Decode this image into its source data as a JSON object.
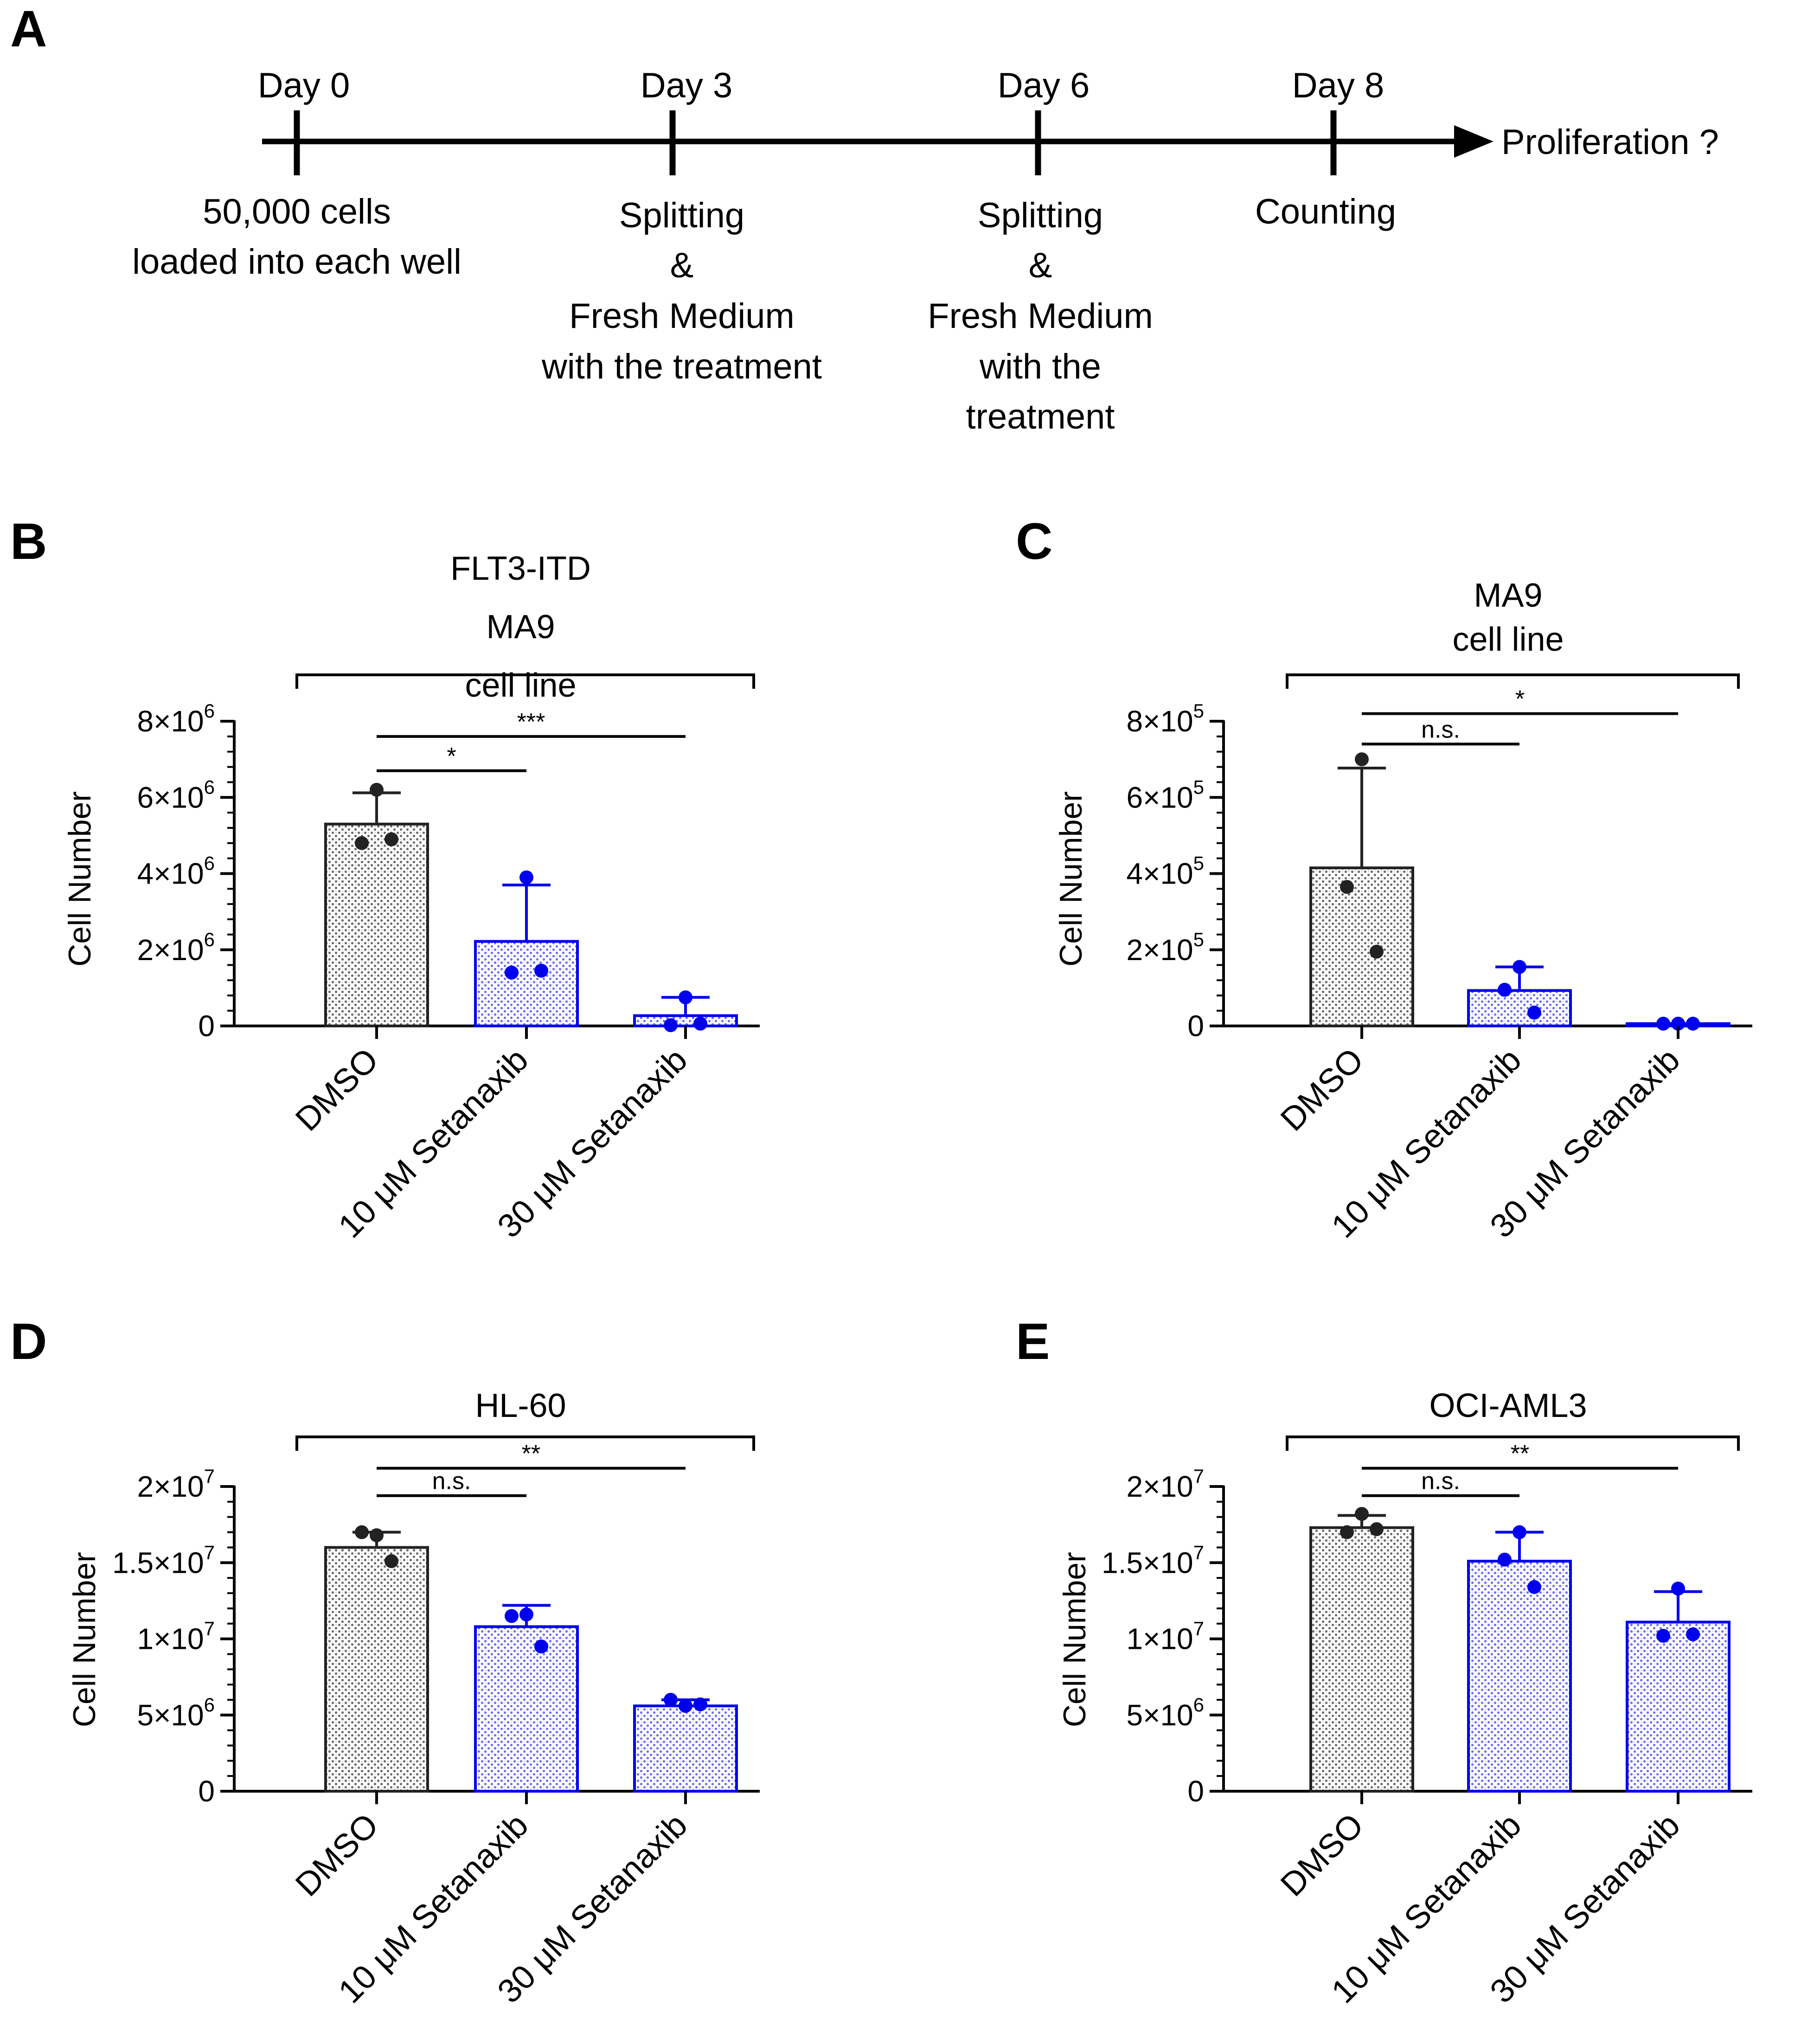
{
  "colors": {
    "dmso": "#222222",
    "treat": "#0000ee",
    "black": "#000000"
  },
  "timeline": {
    "panel": "A",
    "end_label": "Proliferation ?",
    "days": [
      {
        "label": "Day 0",
        "notes": [
          "50,000 cells",
          "loaded into each well"
        ]
      },
      {
        "label": "Day 3",
        "notes": [
          "Splitting",
          "&",
          "Fresh Medium",
          "with the treatment"
        ]
      },
      {
        "label": "Day 6",
        "notes": [
          "Splitting",
          "&",
          "Fresh Medium",
          "with the",
          "treatment"
        ]
      },
      {
        "label": "Day 8",
        "notes": [
          "Counting"
        ]
      }
    ]
  },
  "chart_data": [
    {
      "panel": "B",
      "type": "bar",
      "title_lines": [
        "FLT3-ITD",
        "MA9",
        "cell line"
      ],
      "ylabel": "Cell Number",
      "categories": [
        "DMSO",
        "10 μM Setanaxib",
        "30 μM Setanaxib"
      ],
      "values": [
        5300000,
        2220000,
        270000
      ],
      "errors": [
        820000,
        1480000,
        480000
      ],
      "points": [
        [
          6200000,
          4800000,
          4900000
        ],
        [
          3900000,
          1400000,
          1450000
        ],
        [
          750000,
          20000,
          60000
        ]
      ],
      "ylim": [
        0,
        8000000
      ],
      "yticks": [
        {
          "mant": "0",
          "exp": ""
        },
        {
          "mant": "2×10",
          "exp": "6"
        },
        {
          "mant": "4×10",
          "exp": "6"
        },
        {
          "mant": "6×10",
          "exp": "6"
        },
        {
          "mant": "8×10",
          "exp": "6"
        }
      ],
      "minor_per_major": 5,
      "comparisons": [
        {
          "from": 0,
          "to": 1,
          "label": "*",
          "value": 6700000
        },
        {
          "from": 0,
          "to": 2,
          "label": "***",
          "value": 7600000
        }
      ]
    },
    {
      "panel": "C",
      "type": "bar",
      "title_lines": [
        "MA9",
        "cell line"
      ],
      "ylabel": "Cell Number",
      "categories": [
        "DMSO",
        "10 μM Setanaxib",
        "30 μM Setanaxib"
      ],
      "values": [
        415000,
        93000,
        6000
      ],
      "errors": [
        262000,
        62000,
        0
      ],
      "points": [
        [
          700000,
          365000,
          195000
        ],
        [
          155000,
          95000,
          35000
        ],
        [
          6000,
          6000,
          6000
        ]
      ],
      "ylim": [
        0,
        800000
      ],
      "yticks": [
        {
          "mant": "0",
          "exp": ""
        },
        {
          "mant": "2×10",
          "exp": "5"
        },
        {
          "mant": "4×10",
          "exp": "5"
        },
        {
          "mant": "6×10",
          "exp": "5"
        },
        {
          "mant": "8×10",
          "exp": "5"
        }
      ],
      "minor_per_major": 5,
      "comparisons": [
        {
          "from": 0,
          "to": 1,
          "label": "n.s.",
          "value": 740000
        },
        {
          "from": 0,
          "to": 2,
          "label": "*",
          "value": 820000
        }
      ]
    },
    {
      "panel": "D",
      "type": "bar",
      "title_lines": [
        "HL-60"
      ],
      "ylabel": "Cell Number",
      "categories": [
        "DMSO",
        "10 μM Setanaxib",
        "30 μM Setanaxib"
      ],
      "values": [
        16000000,
        10800000,
        5600000
      ],
      "errors": [
        1000000,
        1400000,
        400000
      ],
      "points": [
        [
          16800000,
          17000000,
          15100000
        ],
        [
          11600000,
          11500000,
          9500000
        ],
        [
          5600000,
          6000000,
          5700000
        ]
      ],
      "ylim": [
        0,
        20000000
      ],
      "yticks": [
        {
          "mant": "0",
          "exp": ""
        },
        {
          "mant": "5×10",
          "exp": "6"
        },
        {
          "mant": "1×10",
          "exp": "7"
        },
        {
          "mant": "1.5×10",
          "exp": "7"
        },
        {
          "mant": "2×10",
          "exp": "7"
        }
      ],
      "minor_per_major": 5,
      "comparisons": [
        {
          "from": 0,
          "to": 1,
          "label": "n.s.",
          "value": 19400000
        },
        {
          "from": 0,
          "to": 2,
          "label": "**",
          "value": 21200000
        }
      ]
    },
    {
      "panel": "E",
      "type": "bar",
      "title_lines": [
        "OCI-AML3"
      ],
      "ylabel": "Cell Number",
      "categories": [
        "DMSO",
        "10 μM Setanaxib",
        "30 μM Setanaxib"
      ],
      "values": [
        17300000,
        15100000,
        11100000
      ],
      "errors": [
        800000,
        1900000,
        2000000
      ],
      "points": [
        [
          18200000,
          17000000,
          17200000
        ],
        [
          17000000,
          15200000,
          13400000
        ],
        [
          13300000,
          10200000,
          10300000
        ]
      ],
      "ylim": [
        0,
        20000000
      ],
      "yticks": [
        {
          "mant": "0",
          "exp": ""
        },
        {
          "mant": "5×10",
          "exp": "6"
        },
        {
          "mant": "1×10",
          "exp": "7"
        },
        {
          "mant": "1.5×10",
          "exp": "7"
        },
        {
          "mant": "2×10",
          "exp": "7"
        }
      ],
      "minor_per_major": 5,
      "comparisons": [
        {
          "from": 0,
          "to": 1,
          "label": "n.s.",
          "value": 19400000
        },
        {
          "from": 0,
          "to": 2,
          "label": "**",
          "value": 21200000
        }
      ]
    }
  ]
}
